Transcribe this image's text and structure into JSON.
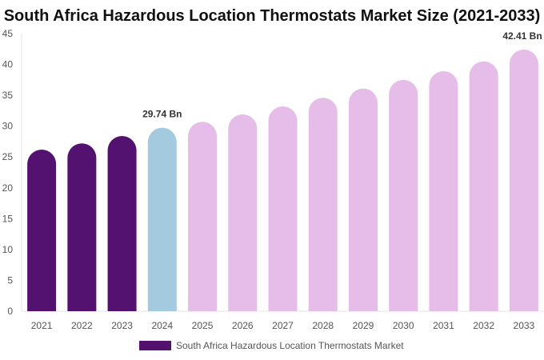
{
  "chart_data": {
    "type": "bar",
    "title": "South Africa Hazardous Location Thermostats Market Size (2021-2033)",
    "categories": [
      "2021",
      "2022",
      "2023",
      "2024",
      "2025",
      "2026",
      "2027",
      "2028",
      "2029",
      "2030",
      "2031",
      "2032",
      "2033"
    ],
    "series": [
      {
        "name": "South Africa Hazardous Location Thermostats Market",
        "values": [
          26.2,
          27.2,
          28.4,
          29.74,
          30.7,
          31.9,
          33.2,
          34.6,
          36.1,
          37.5,
          38.9,
          40.5,
          42.41
        ]
      }
    ],
    "data_labels": {
      "3": "29.74 Bn",
      "12": "42.41 Bn"
    },
    "ylim": [
      0,
      45
    ],
    "yticks": [
      0,
      5,
      10,
      15,
      20,
      25,
      30,
      35,
      40,
      45
    ],
    "bar_colors": {
      "historical": "#541270",
      "current": "#a3cadf",
      "forecast": "#e6bce9"
    },
    "legend_color": "#541270",
    "legend_position": "bottom",
    "grid": false
  }
}
